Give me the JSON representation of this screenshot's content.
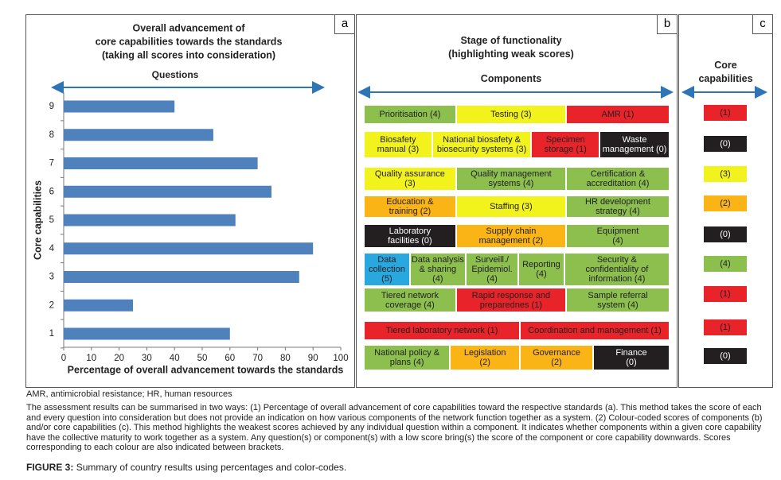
{
  "chart_data": {
    "type": "bar",
    "orientation": "horizontal",
    "panel_label": "a",
    "title": [
      "Overall advancement of",
      "core capabilities towards the standards",
      "(taking all scores into consideration)"
    ],
    "top_axis_label": "Questions",
    "xlabel": "Percentage of overall advancement towards the standards",
    "ylabel": "Core capabilities",
    "categories": [
      "1",
      "2",
      "3",
      "4",
      "5",
      "6",
      "7",
      "8",
      "9"
    ],
    "values": [
      60,
      25,
      85,
      90,
      62,
      75,
      70,
      54,
      40
    ],
    "color": "#4f81bd",
    "xlim": [
      0,
      100
    ],
    "xticks": [
      0,
      10,
      20,
      30,
      40,
      50,
      60,
      70,
      80,
      90,
      100
    ],
    "grid": false
  },
  "panel_b": {
    "label": "b",
    "title": "Stage of functionality\n(highlighting weak scores)",
    "components_label": "Components",
    "rows": [
      [
        {
          "text": "Prioritisation  (4)",
          "color": "#8cbf4e"
        },
        {
          "text": "Testing (3)",
          "color": "#f2f21c"
        },
        {
          "text": "AMR (1)",
          "color": "#e8232a"
        }
      ],
      [
        {
          "text": "Biosafety\nmanual (3)",
          "color": "#f2f21c"
        },
        {
          "text": "National biosafety &\nbiosecurity systems (3)",
          "color": "#f2f21c"
        },
        {
          "text": "Specimen\nstorage (1)",
          "color": "#e8232a"
        },
        {
          "text": "Waste\nmanagement (0)",
          "color": "#231f20"
        }
      ],
      [
        {
          "text": "Quality assurance\n(3)",
          "color": "#f2f21c"
        },
        {
          "text": "Quality management\nsystems (4)",
          "color": "#8cbf4e"
        },
        {
          "text": "Certification &\naccreditation (4)",
          "color": "#8cbf4e"
        }
      ],
      [
        {
          "text": "Education &\ntraining (2)",
          "color": "#fbb416"
        },
        {
          "text": "Staffing (3)",
          "color": "#f2f21c"
        },
        {
          "text": "HR development\nstrategy (4)",
          "color": "#8cbf4e"
        }
      ],
      [
        {
          "text": "Laboratory\nfacilities (0)",
          "color": "#231f20"
        },
        {
          "text": "Supply chain\nmanagement (2)",
          "color": "#fbb416"
        },
        {
          "text": "Equipment\n(4)",
          "color": "#8cbf4e"
        }
      ],
      [
        {
          "text": "Data\ncollection\n(5)",
          "color": "#29a8e0"
        },
        {
          "text": "Data analysis\n& sharing\n(4)",
          "color": "#8cbf4e"
        },
        {
          "text": "Surveill./\nEpidemiol.\n(4)",
          "color": "#8cbf4e"
        },
        {
          "text": "Reporting\n(4)",
          "color": "#8cbf4e"
        },
        {
          "text": "Security &\nconfidentiality of\ninformation (4)",
          "color": "#8cbf4e"
        }
      ],
      [
        {
          "text": "Tiered network\ncoverage (4)",
          "color": "#8cbf4e"
        },
        {
          "text": "Rapid response and\npreparednes (1)",
          "color": "#e8232a"
        },
        {
          "text": "Sample referral\nsystem (4)",
          "color": "#8cbf4e"
        }
      ],
      [
        {
          "text": "Tiered laboratory network (1)",
          "color": "#e8232a"
        },
        {
          "text": "Coordination and management (1)",
          "color": "#e8232a"
        }
      ],
      [
        {
          "text": "National policy &\nplans (4)",
          "color": "#8cbf4e"
        },
        {
          "text": "Legislation\n(2)",
          "color": "#fbb416"
        },
        {
          "text": "Governance\n(2)",
          "color": "#fbb416"
        },
        {
          "text": "Finance\n(0)",
          "color": "#231f20"
        }
      ]
    ]
  },
  "panel_c": {
    "label": "c",
    "title": "Core\ncapabilities",
    "scores": [
      {
        "text": "(1)",
        "color": "#e8232a"
      },
      {
        "text": "(0)",
        "color": "#231f20"
      },
      {
        "text": "(3)",
        "color": "#f2f21c"
      },
      {
        "text": "(2)",
        "color": "#fbb416"
      },
      {
        "text": "(0)",
        "color": "#231f20"
      },
      {
        "text": "(4)",
        "color": "#8cbf4e"
      },
      {
        "text": "(1)",
        "color": "#e8232a"
      },
      {
        "text": "(1)",
        "color": "#e8232a"
      },
      {
        "text": "(0)",
        "color": "#231f20"
      }
    ]
  },
  "caption": {
    "abbreviations": "AMR, antimicrobial resistance; HR, human resources",
    "body": "The assessment results can be summarised in two ways: (1) Percentage of overall advancement of core capabilities toward the respective standards (a). This method takes the score of each and every question into consideration but does not provide an indication on how various components of the network function together as a system. (2) Colour-coded scores of components (b) and/or core capabilities (c). This method highlights the weakest scores achieved by any individual question within a component. It indicates whether components within a given core capability have the collective maturity to work together as a system. Any question(s) or component(s) with a low score bring(s) the score of the component or core capability downwards. Scores corresponding to each colour are also indicated between brackets.",
    "figure_label": "FIGURE 3:",
    "figure_title": "Summary of country results using percentages and color-codes."
  }
}
